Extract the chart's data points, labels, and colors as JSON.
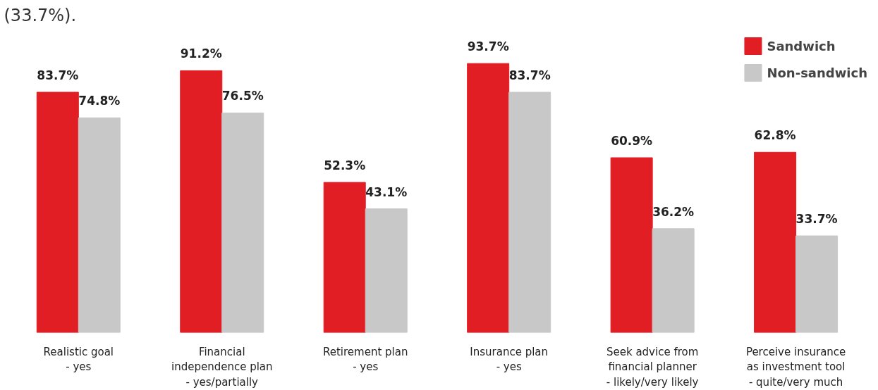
{
  "chart_data": {
    "type": "bar",
    "annotations": [
      "(33.7%)."
    ],
    "categories": [
      "Realistic goal\n- yes",
      "Financial\nindependence plan\n- yes/partially",
      "Retirement plan\n- yes",
      "Insurance plan\n- yes",
      "Seek advice from\nfinancial planner\n- likely/very likely",
      "Perceive insurance\nas investment tool\n- quite/very much"
    ],
    "series": [
      {
        "name": "Sandwich",
        "color": "#e01e24",
        "values": [
          83.7,
          91.2,
          52.3,
          93.7,
          60.9,
          62.8
        ],
        "value_labels": [
          "83.7%",
          "91.2%",
          "52.3%",
          "93.7%",
          "60.9%",
          "62.8%"
        ]
      },
      {
        "name": "Non-sandwich",
        "color": "#c8c8c8",
        "values": [
          74.8,
          76.5,
          43.1,
          83.7,
          36.2,
          33.7
        ],
        "value_labels": [
          "74.8%",
          "76.5%",
          "43.1%",
          "83.7%",
          "36.2%",
          "33.7%"
        ]
      }
    ],
    "legend": "top right",
    "grid": false,
    "tick_labels": "x"
  }
}
